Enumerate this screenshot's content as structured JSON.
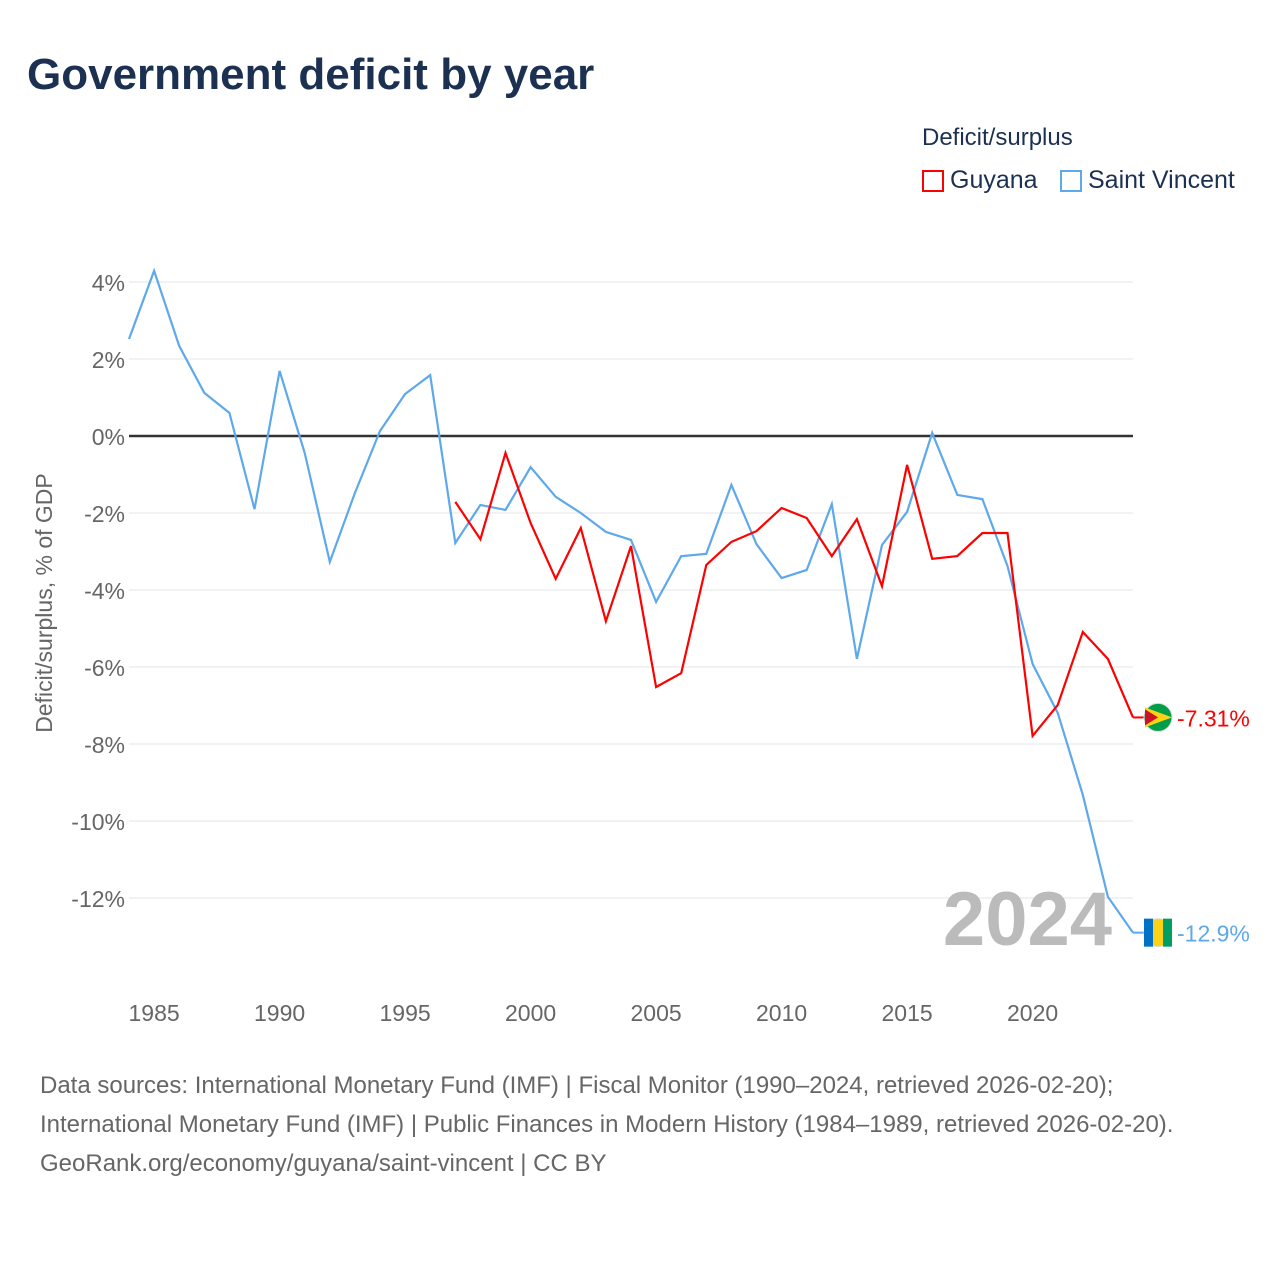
{
  "title": "Government deficit by year",
  "legend": {
    "title": "Deficit/surplus",
    "items": [
      {
        "label": "Guyana",
        "color": "#ff0000"
      },
      {
        "label": "Saint Vincent",
        "color": "#5ea8ec"
      }
    ]
  },
  "year_label": "2024",
  "footer": {
    "sources": "Data sources: International Monetary Fund (IMF) | Fiscal Monitor (1990–2024, retrieved 2026-02-20); International Monetary Fund (IMF) | Public Finances in Modern History (1984–1989, retrieved 2026-02-20).",
    "credit": "GeoRank.org/economy/guyana/saint-vincent | CC BY"
  },
  "chart_data": {
    "type": "line",
    "title": "Government deficit by year",
    "ylabel": "Deficit/surplus, % of GDP",
    "xlabel": "",
    "xlim": [
      1984,
      2024
    ],
    "ylim": [
      -14,
      4.5
    ],
    "xticks": [
      1985,
      1990,
      1995,
      2000,
      2005,
      2010,
      2015,
      2020
    ],
    "yticks": [
      4,
      2,
      0,
      -2,
      -4,
      -6,
      -8,
      -10,
      -12
    ],
    "yticklabels": [
      "4%",
      "2%",
      "0%",
      "-2%",
      "-4%",
      "-6%",
      "-8%",
      "-10%",
      "-12%"
    ],
    "grid": true,
    "legend_position": "top-right",
    "series": [
      {
        "name": "Guyana",
        "color": "#ff0000",
        "end_label": "-7.31%",
        "start_year": 1997,
        "values": [
          -1.71,
          -2.68,
          -0.44,
          -2.26,
          -3.71,
          -2.39,
          -4.81,
          -2.86,
          -6.52,
          -6.16,
          -3.35,
          -2.75,
          -2.47,
          -1.87,
          -2.13,
          -3.12,
          -2.16,
          -3.9,
          -0.75,
          -3.19,
          -3.12,
          -2.52,
          -2.52,
          -7.79,
          -6.99,
          -5.09,
          -5.79,
          -7.31
        ]
      },
      {
        "name": "Saint Vincent",
        "color": "#5ea8ec",
        "end_label": "-12.9%",
        "start_year": 1984,
        "values": [
          2.52,
          4.29,
          2.34,
          1.12,
          0.6,
          -1.9,
          1.69,
          -0.44,
          -3.27,
          -1.48,
          0.13,
          1.09,
          1.58,
          -2.78,
          -1.79,
          -1.92,
          -0.81,
          -1.58,
          -2.0,
          -2.49,
          -2.7,
          -4.31,
          -3.12,
          -3.06,
          -1.27,
          -2.81,
          -3.69,
          -3.48,
          -1.77,
          -5.79,
          -2.83,
          -1.97,
          0.08,
          -1.53,
          -1.64,
          -3.38,
          -5.92,
          -7.19,
          -9.32,
          -11.97,
          -12.9
        ]
      }
    ]
  }
}
